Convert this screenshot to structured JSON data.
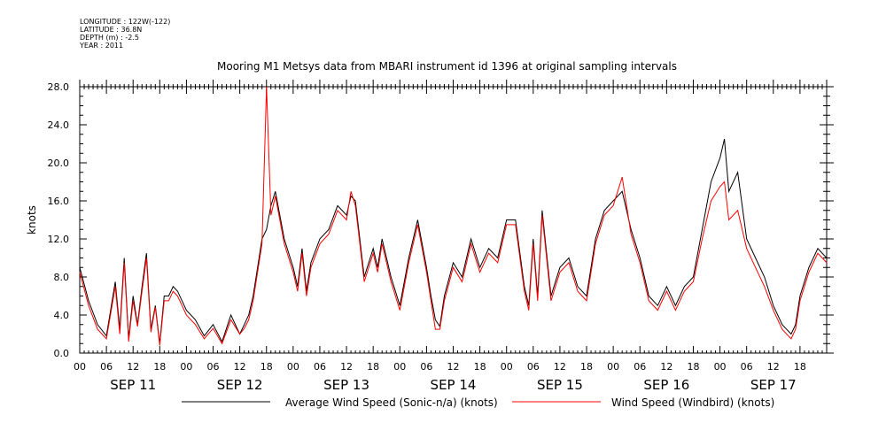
{
  "header": {
    "longitude": "LONGITUDE : 122W(-122)",
    "latitude": "LATITUDE : 36.8N",
    "depth": "DEPTH (m) : -2.5",
    "year": "YEAR : 2011"
  },
  "chart_data": {
    "type": "line",
    "title": "Mooring M1 Metsys data from MBARI instrument id 1396 at original sampling intervals",
    "ylabel": "knots",
    "xlabel": "",
    "ylim": [
      0,
      28
    ],
    "y_ticks": [
      "0.0",
      "4.0",
      "8.0",
      "12.0",
      "16.0",
      "20.0",
      "24.0",
      "28.0"
    ],
    "x_range_hours": [
      0,
      168
    ],
    "x_hour_labels": [
      "00",
      "06",
      "12",
      "18",
      "00",
      "06",
      "12",
      "18",
      "00",
      "06",
      "12",
      "18",
      "00",
      "06",
      "12",
      "18",
      "00",
      "06",
      "12",
      "18",
      "00",
      "06",
      "12",
      "18",
      "00",
      "06",
      "12",
      "18"
    ],
    "day_labels": [
      "SEP 11",
      "SEP 12",
      "SEP 13",
      "SEP 14",
      "SEP 15",
      "SEP 16",
      "SEP 17"
    ],
    "legend_position": "bottom",
    "series": [
      {
        "name": "Average Wind Speed (Sonic-n/a) (knots)",
        "color": "#000000",
        "x": [
          0,
          2,
          4,
          6,
          8,
          9,
          10,
          11,
          12,
          13,
          14,
          15,
          16,
          17,
          18,
          19,
          20,
          21,
          22,
          24,
          26,
          28,
          30,
          32,
          34,
          36,
          37,
          38,
          39,
          40,
          41,
          42,
          43,
          44,
          46,
          48,
          49,
          50,
          51,
          52,
          54,
          56,
          58,
          60,
          61,
          62,
          63,
          64,
          66,
          67,
          68,
          70,
          72,
          74,
          76,
          78,
          79,
          80,
          81,
          82,
          84,
          86,
          88,
          90,
          92,
          94,
          96,
          98,
          100,
          101,
          102,
          103,
          104,
          106,
          108,
          110,
          112,
          114,
          116,
          118,
          120,
          122,
          124,
          126,
          128,
          130,
          132,
          134,
          136,
          138,
          140,
          142,
          144,
          145,
          146,
          148,
          150,
          152,
          154,
          156,
          158,
          160,
          161,
          162,
          164,
          166,
          168
        ],
        "values": [
          9,
          5.5,
          3,
          1.8,
          7.5,
          2.5,
          10,
          1.5,
          6,
          3,
          7,
          10.5,
          2.5,
          5,
          1,
          6,
          6,
          7,
          6.5,
          4.5,
          3.5,
          1.8,
          3,
          1.2,
          4,
          2,
          3,
          4,
          6,
          9,
          12,
          13,
          15.5,
          17,
          12,
          9,
          7,
          11,
          6.5,
          9.5,
          12,
          13,
          15.5,
          14.5,
          16.5,
          16,
          12,
          8,
          11,
          9,
          12,
          8,
          5,
          10,
          14,
          9,
          6,
          3.5,
          2.8,
          6,
          9.5,
          8,
          12,
          9,
          11,
          10,
          14,
          14,
          7,
          5,
          12,
          6,
          15,
          6,
          9,
          10,
          7,
          6,
          12,
          15,
          16,
          17,
          13,
          10,
          6,
          5,
          7,
          5,
          7,
          8,
          13,
          18,
          20.5,
          22.5,
          17,
          19,
          12,
          10,
          8,
          5,
          3,
          2,
          3,
          6,
          9,
          11,
          10
        ]
      },
      {
        "name": "Wind Speed (Windbird) (knots)",
        "color": "#ff0000",
        "x": [
          0,
          2,
          4,
          6,
          8,
          9,
          10,
          11,
          12,
          13,
          14,
          15,
          16,
          17,
          18,
          19,
          20,
          21,
          22,
          24,
          26,
          28,
          30,
          32,
          34,
          36,
          37,
          38,
          39,
          40,
          41,
          42,
          43,
          44,
          46,
          48,
          49,
          50,
          51,
          52,
          54,
          56,
          58,
          60,
          61,
          62,
          63,
          64,
          66,
          67,
          68,
          70,
          72,
          74,
          76,
          78,
          79,
          80,
          81,
          82,
          84,
          86,
          88,
          90,
          92,
          94,
          96,
          98,
          100,
          101,
          102,
          103,
          104,
          106,
          108,
          110,
          112,
          114,
          116,
          118,
          120,
          122,
          124,
          126,
          128,
          130,
          132,
          134,
          136,
          138,
          140,
          142,
          144,
          145,
          146,
          148,
          150,
          152,
          154,
          156,
          158,
          160,
          161,
          162,
          164,
          166,
          168
        ],
        "values": [
          8.5,
          5,
          2.5,
          1.5,
          7,
          2,
          9.5,
          1.2,
          5.5,
          2.8,
          6.5,
          10,
          2.2,
          4.8,
          0.8,
          5.5,
          5.5,
          6.5,
          6,
          4,
          3,
          1.5,
          2.6,
          1,
          3.5,
          2,
          2.6,
          3.5,
          5.5,
          8.5,
          11.5,
          28,
          14.5,
          16.5,
          11.5,
          8.5,
          6.5,
          10.5,
          6,
          9,
          11.5,
          12.5,
          15,
          14,
          17,
          15.5,
          11.5,
          7.5,
          10.5,
          8.5,
          11.5,
          7.5,
          4.5,
          9.5,
          13.5,
          8.5,
          5.5,
          2.5,
          2.5,
          5.5,
          9,
          7.5,
          11.5,
          8.5,
          10.5,
          9.5,
          13.5,
          13.5,
          6.5,
          4.5,
          11.5,
          5.5,
          14.5,
          5.5,
          8.5,
          9.5,
          6.5,
          5.5,
          11.5,
          14.5,
          15.5,
          18.5,
          12.5,
          9.5,
          5.5,
          4.5,
          6.5,
          4.5,
          6.5,
          7.5,
          12,
          16,
          17.5,
          18,
          14,
          15,
          11,
          9,
          7,
          4.5,
          2.5,
          1.5,
          2.5,
          5.5,
          8.5,
          10.5,
          9.5
        ]
      }
    ]
  }
}
